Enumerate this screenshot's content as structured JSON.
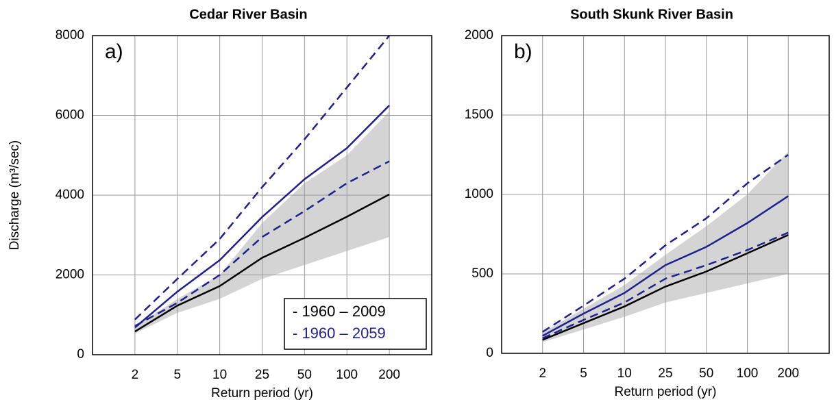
{
  "chart_data": [
    {
      "type": "line",
      "title": "Cedar River Basin",
      "panel_label": "a)",
      "xlabel": "Return period (yr)",
      "ylabel": "Discharge (m³/sec)",
      "categories": [
        "2",
        "5",
        "10",
        "25",
        "50",
        "100",
        "200"
      ],
      "ylim": [
        0,
        8000
      ],
      "yticks": [
        0,
        2000,
        4000,
        6000,
        8000
      ],
      "grid": true,
      "legend": "lower right",
      "series": [
        {
          "name": "- 1960 – 2009",
          "color": "#000000",
          "values": [
            580,
            1230,
            1720,
            2430,
            2930,
            3460,
            4020
          ],
          "band_lower": [
            530,
            1050,
            1400,
            1900,
            2250,
            2600,
            2950
          ],
          "band_upper": [
            700,
            1400,
            2000,
            3300,
            4300,
            5000,
            6100
          ],
          "band_color": "#d4d4d4"
        },
        {
          "name": "- 1960 – 2059",
          "color": "#1f1f8f",
          "values": [
            680,
            1580,
            2370,
            3450,
            4400,
            5180,
            6250
          ],
          "lower": [
            720,
            1300,
            2000,
            2950,
            3600,
            4300,
            4850
          ],
          "upper": [
            880,
            1900,
            2900,
            4200,
            5400,
            6700,
            8000
          ]
        }
      ]
    },
    {
      "type": "line",
      "title": "South Skunk River Basin",
      "panel_label": "b)",
      "xlabel": "Return period (yr)",
      "categories": [
        "2",
        "5",
        "10",
        "25",
        "50",
        "100",
        "200"
      ],
      "ylim": [
        0,
        2000
      ],
      "yticks": [
        0,
        500,
        1000,
        1500,
        2000
      ],
      "grid": true,
      "series": [
        {
          "color": "#000000",
          "values": [
            85,
            190,
            295,
            420,
            515,
            630,
            745
          ],
          "band_lower": [
            70,
            150,
            230,
            320,
            380,
            440,
            500
          ],
          "band_upper": [
            130,
            280,
            430,
            620,
            800,
            1000,
            1270
          ],
          "band_color": "#d4d4d4"
        },
        {
          "color": "#1f1f8f",
          "values": [
            110,
            250,
            380,
            555,
            670,
            820,
            990
          ],
          "lower": [
            95,
            210,
            320,
            470,
            555,
            650,
            760
          ],
          "upper": [
            135,
            300,
            470,
            680,
            850,
            1070,
            1250
          ]
        }
      ]
    }
  ]
}
